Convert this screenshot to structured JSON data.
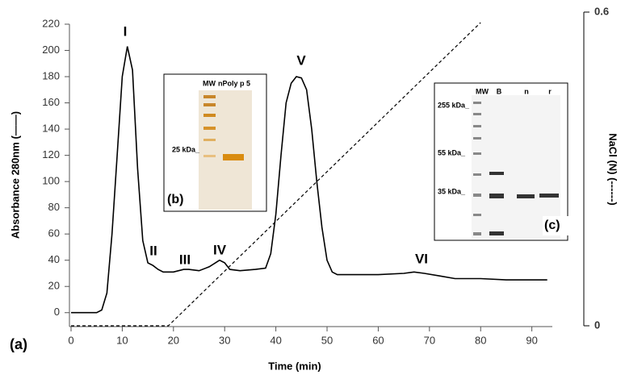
{
  "chart_data": {
    "type": "line",
    "x_label": "Time (min)",
    "y_label": "Absorbance 280nm (——)",
    "y2_label": "NaCl (N) (------)",
    "panel_label": "(a)",
    "peak_labels": [
      "I",
      "II",
      "III",
      "IV",
      "V",
      "VI"
    ],
    "xlim": [
      0,
      94
    ],
    "xticks": [
      0,
      10,
      20,
      30,
      40,
      50,
      60,
      70,
      80,
      90
    ],
    "ylim": [
      -10,
      220
    ],
    "yticks": [
      0,
      20,
      40,
      60,
      80,
      100,
      120,
      140,
      160,
      180,
      200,
      220
    ],
    "y2lim": [
      0,
      0.6
    ],
    "y2ticks": [
      0,
      0.6
    ],
    "series": [
      {
        "color": "#000000",
        "dashed": false,
        "x": [
          0,
          5,
          6,
          7,
          8,
          9,
          10,
          11,
          12,
          13,
          14,
          15,
          16,
          17,
          18,
          20,
          22,
          23,
          25,
          27,
          29,
          30,
          31,
          33,
          36,
          38,
          39,
          40,
          41,
          42,
          43,
          44,
          45,
          46,
          47,
          48,
          49,
          50,
          51,
          52,
          55,
          60,
          65,
          67,
          69,
          72,
          75,
          80,
          85,
          93
        ],
        "values": [
          0,
          0,
          2,
          15,
          60,
          120,
          180,
          203,
          185,
          110,
          55,
          38,
          36,
          33,
          31,
          31,
          33,
          33,
          32,
          35,
          40,
          38,
          33,
          32,
          33,
          34,
          45,
          75,
          120,
          160,
          175,
          180,
          179,
          170,
          140,
          100,
          65,
          40,
          31,
          29,
          29,
          29,
          30,
          31,
          30,
          28,
          26,
          26,
          25,
          25
        ]
      },
      {
        "color": "#000000",
        "dashed": true,
        "axis": "y2",
        "x": [
          0,
          19,
          80
        ],
        "values": [
          0,
          0,
          0.58
        ]
      }
    ]
  },
  "insets": [
    {
      "label": "(b)",
      "lanes": [
        "MW",
        "nPoly p 5"
      ],
      "markers": [
        "25 kDa_"
      ]
    },
    {
      "label": "(c)",
      "lanes": [
        "MW",
        "B",
        "n",
        "r"
      ],
      "markers": [
        "255 kDa_",
        "55 kDa_",
        "35 kDa_"
      ]
    }
  ]
}
